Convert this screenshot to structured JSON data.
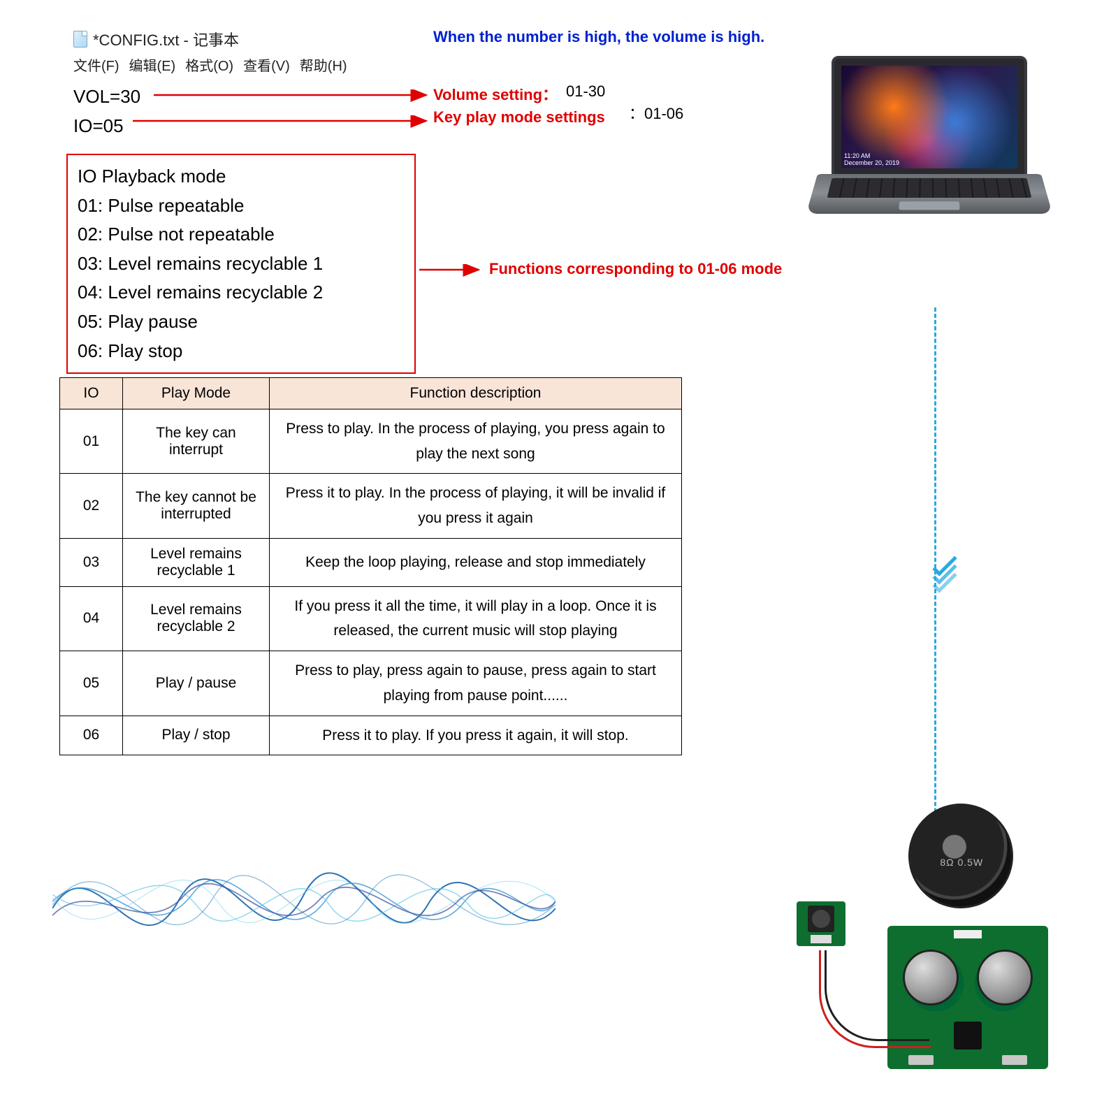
{
  "notepad": {
    "title": "*CONFIG.txt - 记事本",
    "menu": [
      "文件(F)",
      "编辑(E)",
      "格式(O)",
      "查看(V)",
      "帮助(H)"
    ],
    "line1": "VOL=30",
    "line2": "IO=05"
  },
  "annotations": {
    "blue_note": "When the number is high, the volume is high.",
    "vol_label": "Volume setting：",
    "vol_range": "01-30",
    "io_label": "Key play mode settings",
    "io_range": "：01-06",
    "func_label": "Functions corresponding to 01-06 mode",
    "arrow_color": "#e00000"
  },
  "playback_box": {
    "title": "IO Playback mode",
    "items": [
      "01: Pulse repeatable",
      "02: Pulse not repeatable",
      "03: Level remains recyclable 1",
      "04: Level remains recyclable 2",
      "05: Play pause",
      "06: Play stop"
    ],
    "border_color": "#e00000"
  },
  "table": {
    "headers": [
      "IO",
      "Play Mode",
      "Function description"
    ],
    "header_bg": "#f9e5d8",
    "rows": [
      {
        "io": "01",
        "mode": "The key can interrupt",
        "desc": "Press to play. In the process of playing, you press again to play the next song"
      },
      {
        "io": "02",
        "mode": "The key cannot be interrupted",
        "desc": "Press it to play. In the process of playing, it will be invalid if you press it again"
      },
      {
        "io": "03",
        "mode": "Level remains recyclable 1",
        "desc": "Keep the loop playing, release and stop immediately"
      },
      {
        "io": "04",
        "mode": "Level remains recyclable 2",
        "desc": "If you press it all the time, it will play in a loop. Once it is released, the current music will stop playing"
      },
      {
        "io": "05",
        "mode": "Play / pause",
        "desc": "Press to play, press again to pause, press again to start playing from pause point......"
      },
      {
        "io": "06",
        "mode": "Play / stop",
        "desc": "Press it to play. If you press it again, it will stop."
      }
    ]
  },
  "laptop": {
    "time": "11:20 AM",
    "date": "December 20, 2019"
  },
  "flow": {
    "dash_color": "#2aa8e0"
  },
  "wave": {
    "colors": [
      "#0b5aa8",
      "#2a8fd0",
      "#5fc6e8",
      "#3a4fa0"
    ]
  },
  "module": {
    "speaker_label": "8Ω 0.5W",
    "pcb_color": "#0e6e2f"
  }
}
